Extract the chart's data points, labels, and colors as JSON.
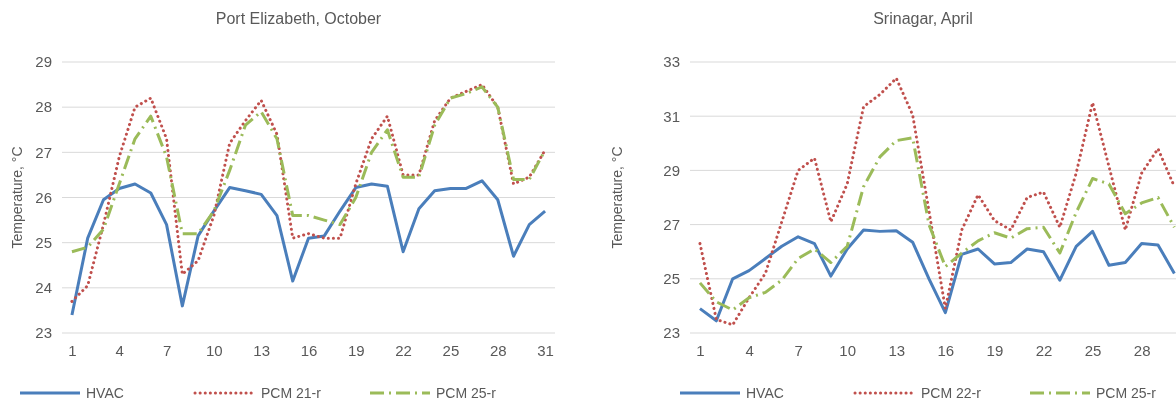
{
  "chart_data": [
    {
      "type": "line",
      "title": "Port Elizabeth, October",
      "ylabel": "Temperature, °C",
      "x": [
        1,
        2,
        3,
        4,
        5,
        6,
        7,
        8,
        9,
        10,
        11,
        12,
        13,
        14,
        15,
        16,
        17,
        18,
        19,
        20,
        21,
        22,
        23,
        24,
        25,
        26,
        27,
        28,
        29,
        30,
        31
      ],
      "xlim": [
        0.37,
        31.63
      ],
      "xticks": [
        1,
        4,
        7,
        10,
        13,
        16,
        19,
        22,
        25,
        28,
        31
      ],
      "ylim": [
        23,
        29
      ],
      "yticks": [
        23,
        24,
        25,
        26,
        27,
        28,
        29
      ],
      "grid": "y",
      "legend": "bottom",
      "marker": "none",
      "series": [
        {
          "name": "HVAC",
          "color": "#4a7ebb",
          "line_style": "solid",
          "values": [
            23.4,
            25.1,
            25.95,
            26.2,
            26.3,
            26.1,
            25.4,
            23.6,
            25.15,
            25.7,
            26.22,
            26.15,
            26.07,
            25.6,
            24.15,
            25.1,
            25.15,
            25.7,
            26.22,
            26.3,
            26.25,
            24.8,
            25.75,
            26.15,
            26.2,
            26.2,
            26.37,
            25.95,
            24.7,
            25.4,
            25.7
          ]
        },
        {
          "name": "PCM 21-r",
          "color": "#c0504d",
          "line_style": "dotted",
          "values": [
            23.7,
            24.05,
            25.4,
            26.9,
            28.0,
            28.2,
            27.3,
            24.3,
            24.6,
            25.6,
            27.2,
            27.7,
            28.15,
            27.4,
            25.1,
            25.2,
            25.1,
            25.1,
            26.3,
            27.3,
            27.8,
            26.5,
            26.5,
            27.7,
            28.2,
            28.35,
            28.5,
            28.0,
            26.3,
            26.45,
            27.05
          ]
        },
        {
          "name": "PCM 25-r",
          "color": "#9bbb59",
          "line_style": "dashdot",
          "values": [
            24.8,
            24.9,
            25.3,
            26.3,
            27.3,
            27.8,
            26.9,
            25.2,
            25.2,
            25.7,
            26.6,
            27.6,
            27.9,
            27.3,
            25.6,
            25.6,
            25.5,
            25.4,
            26.0,
            27.0,
            27.5,
            26.45,
            26.45,
            27.6,
            28.2,
            28.3,
            28.45,
            28.0,
            26.4,
            26.4,
            27.05
          ]
        }
      ]
    },
    {
      "type": "line",
      "title": "Srinagar, April",
      "ylabel": "Temperature, °C",
      "x": [
        1,
        2,
        3,
        4,
        5,
        6,
        7,
        8,
        9,
        10,
        11,
        12,
        13,
        14,
        15,
        16,
        17,
        18,
        19,
        20,
        21,
        22,
        23,
        24,
        25,
        26,
        27,
        28,
        29,
        30
      ],
      "xlim": [
        0.39,
        30.1
      ],
      "xticks": [
        1,
        4,
        7,
        10,
        13,
        16,
        19,
        22,
        25,
        28
      ],
      "ylim": [
        23,
        33
      ],
      "yticks": [
        23,
        25,
        27,
        29,
        31,
        33
      ],
      "grid": "y",
      "legend": "bottom",
      "marker": "none",
      "series": [
        {
          "name": "HVAC",
          "color": "#4a7ebb",
          "line_style": "solid",
          "values": [
            23.9,
            23.45,
            25.0,
            25.3,
            25.75,
            26.2,
            26.55,
            26.3,
            25.1,
            26.1,
            26.8,
            26.75,
            26.77,
            26.35,
            25.0,
            23.75,
            25.9,
            26.1,
            25.55,
            25.6,
            26.1,
            26.0,
            24.95,
            26.2,
            26.75,
            25.5,
            25.6,
            26.3,
            26.25,
            25.2
          ]
        },
        {
          "name": "PCM 22-r",
          "color": "#c0504d",
          "line_style": "dotted",
          "values": [
            26.3,
            23.5,
            23.3,
            24.3,
            25.2,
            27.1,
            29.0,
            29.45,
            27.1,
            28.5,
            31.35,
            31.8,
            32.4,
            31.05,
            27.5,
            23.9,
            26.8,
            28.1,
            27.15,
            26.8,
            28.0,
            28.2,
            26.9,
            28.9,
            31.5,
            29.15,
            26.8,
            28.9,
            29.8,
            28.4
          ]
        },
        {
          "name": "PCM 25-r",
          "color": "#9bbb59",
          "line_style": "dashdot",
          "values": [
            24.85,
            24.15,
            23.85,
            24.3,
            24.5,
            24.95,
            25.75,
            26.1,
            25.6,
            26.2,
            28.4,
            29.5,
            30.1,
            30.2,
            27.0,
            25.45,
            25.95,
            26.4,
            26.7,
            26.5,
            26.85,
            26.9,
            25.95,
            27.45,
            28.7,
            28.5,
            27.4,
            27.8,
            28.0,
            26.9
          ]
        }
      ]
    }
  ]
}
